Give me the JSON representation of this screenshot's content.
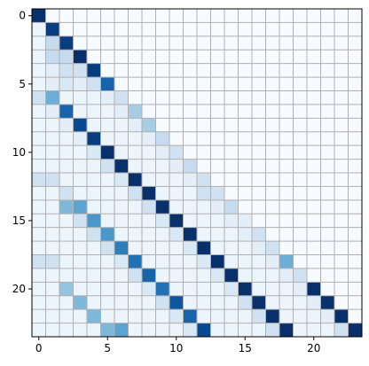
{
  "chart_data": {
    "type": "heatmap",
    "title": "",
    "xlabel": "",
    "ylabel": "",
    "rows": 24,
    "cols": 24,
    "x_ticks": [
      0,
      5,
      10,
      15,
      20
    ],
    "y_ticks": [
      0,
      5,
      10,
      15,
      20
    ],
    "x_tick_labels": [
      "0",
      "5",
      "10",
      "15",
      "20"
    ],
    "y_tick_labels": [
      "0",
      "5",
      "10",
      "15",
      "20"
    ],
    "xlim": [
      -0.5,
      23.5
    ],
    "ylim": [
      23.5,
      -0.5
    ],
    "y_axis": "inverted",
    "grid": true,
    "colormap": "Blues",
    "value_range": [
      0,
      1
    ],
    "values": [
      [
        1.0,
        0,
        0,
        0,
        0,
        0,
        0,
        0,
        0,
        0,
        0,
        0,
        0,
        0,
        0,
        0,
        0,
        0,
        0,
        0,
        0,
        0,
        0,
        0
      ],
      [
        0.05,
        0.95,
        0,
        0,
        0,
        0,
        0,
        0,
        0,
        0,
        0,
        0,
        0,
        0,
        0,
        0,
        0,
        0,
        0,
        0,
        0,
        0,
        0,
        0
      ],
      [
        0.05,
        0.25,
        0.95,
        0,
        0,
        0,
        0,
        0,
        0,
        0,
        0,
        0,
        0,
        0,
        0,
        0,
        0,
        0,
        0,
        0,
        0,
        0,
        0,
        0
      ],
      [
        0.05,
        0.25,
        0.25,
        1.0,
        0,
        0,
        0,
        0,
        0,
        0,
        0,
        0,
        0,
        0,
        0,
        0,
        0,
        0,
        0,
        0,
        0,
        0,
        0,
        0
      ],
      [
        0.05,
        0.1,
        0.2,
        0.2,
        0.95,
        0,
        0,
        0,
        0,
        0,
        0,
        0,
        0,
        0,
        0,
        0,
        0,
        0,
        0,
        0,
        0,
        0,
        0,
        0
      ],
      [
        0.05,
        0.1,
        0.15,
        0.1,
        0.2,
        0.8,
        0,
        0,
        0,
        0,
        0,
        0,
        0,
        0,
        0,
        0,
        0,
        0,
        0,
        0,
        0,
        0,
        0,
        0
      ],
      [
        0.2,
        0.5,
        0.05,
        0.05,
        0.05,
        0.1,
        0.2,
        0,
        0,
        0,
        0,
        0,
        0,
        0,
        0,
        0,
        0,
        0,
        0,
        0,
        0,
        0,
        0,
        0
      ],
      [
        0.05,
        0.1,
        0.8,
        0.05,
        0.05,
        0.05,
        0.1,
        0.35,
        0,
        0,
        0,
        0,
        0,
        0,
        0,
        0,
        0,
        0,
        0,
        0,
        0,
        0,
        0,
        0
      ],
      [
        0.05,
        0.05,
        0.1,
        0.9,
        0.05,
        0.05,
        0.05,
        0.1,
        0.35,
        0,
        0,
        0,
        0,
        0,
        0,
        0,
        0,
        0,
        0,
        0,
        0,
        0,
        0,
        0
      ],
      [
        0.05,
        0.05,
        0.05,
        0.1,
        0.95,
        0.05,
        0.05,
        0.05,
        0.1,
        0.25,
        0,
        0,
        0,
        0,
        0,
        0,
        0,
        0,
        0,
        0,
        0,
        0,
        0,
        0
      ],
      [
        0.05,
        0.05,
        0.05,
        0.05,
        0.15,
        1.0,
        0.05,
        0.05,
        0.05,
        0.1,
        0.2,
        0,
        0,
        0,
        0,
        0,
        0,
        0,
        0,
        0,
        0,
        0,
        0,
        0
      ],
      [
        0.05,
        0.05,
        0.05,
        0.05,
        0.05,
        0.2,
        1.0,
        0.05,
        0.05,
        0.05,
        0.1,
        0.25,
        0,
        0,
        0,
        0,
        0,
        0,
        0,
        0,
        0,
        0,
        0,
        0
      ],
      [
        0.2,
        0.2,
        0.05,
        0.05,
        0.05,
        0.05,
        0.15,
        1.0,
        0.05,
        0.05,
        0.05,
        0.1,
        0.2,
        0,
        0,
        0,
        0,
        0,
        0,
        0,
        0,
        0,
        0,
        0
      ],
      [
        0.05,
        0.05,
        0.2,
        0.05,
        0.05,
        0.05,
        0.05,
        0.2,
        1.0,
        0.05,
        0.05,
        0.05,
        0.2,
        0.2,
        0,
        0,
        0,
        0,
        0,
        0,
        0,
        0,
        0,
        0
      ],
      [
        0.05,
        0.05,
        0.45,
        0.55,
        0.05,
        0.05,
        0.05,
        0.05,
        0.2,
        1.0,
        0.05,
        0.05,
        0.05,
        0.1,
        0.25,
        0,
        0,
        0,
        0,
        0,
        0,
        0,
        0,
        0
      ],
      [
        0.05,
        0.05,
        0.05,
        0.2,
        0.6,
        0.05,
        0.05,
        0.05,
        0.05,
        0.15,
        1.0,
        0.05,
        0.05,
        0.05,
        0.1,
        0.1,
        0,
        0,
        0,
        0,
        0,
        0,
        0,
        0
      ],
      [
        0.05,
        0.05,
        0.05,
        0.05,
        0.2,
        0.6,
        0.05,
        0.05,
        0.05,
        0.05,
        0.15,
        1.0,
        0.05,
        0.05,
        0.05,
        0.1,
        0.2,
        0,
        0,
        0,
        0,
        0,
        0,
        0
      ],
      [
        0.05,
        0.05,
        0.05,
        0.05,
        0.05,
        0.2,
        0.7,
        0.05,
        0.05,
        0.05,
        0.05,
        0.15,
        1.0,
        0.05,
        0.05,
        0.05,
        0.1,
        0.2,
        0,
        0,
        0,
        0,
        0,
        0
      ],
      [
        0.2,
        0.2,
        0.05,
        0.05,
        0.05,
        0.05,
        0.15,
        0.75,
        0.05,
        0.05,
        0.05,
        0.05,
        0.15,
        1.0,
        0.05,
        0.05,
        0.05,
        0.1,
        0.5,
        0,
        0,
        0,
        0,
        0
      ],
      [
        0.05,
        0.05,
        0.05,
        0.05,
        0.05,
        0.05,
        0.05,
        0.2,
        0.8,
        0.05,
        0.05,
        0.05,
        0.05,
        0.15,
        1.0,
        0.05,
        0.05,
        0.05,
        0.1,
        0.2,
        0,
        0,
        0,
        0
      ],
      [
        0.05,
        0.05,
        0.4,
        0.05,
        0.05,
        0.05,
        0.05,
        0.05,
        0.15,
        0.75,
        0.05,
        0.05,
        0.05,
        0.05,
        0.15,
        1.0,
        0.05,
        0.05,
        0.05,
        0.1,
        1.0,
        0,
        0,
        0
      ],
      [
        0.05,
        0.05,
        0.05,
        0.45,
        0.05,
        0.05,
        0.05,
        0.05,
        0.05,
        0.2,
        0.85,
        0.05,
        0.05,
        0.05,
        0.05,
        0.2,
        1.0,
        0.05,
        0.05,
        0.05,
        0.1,
        1.0,
        0,
        0
      ],
      [
        0.05,
        0.05,
        0.05,
        0.05,
        0.45,
        0.05,
        0.05,
        0.05,
        0.05,
        0.05,
        0.15,
        0.8,
        0.05,
        0.05,
        0.05,
        0.05,
        0.2,
        1.0,
        0.05,
        0.05,
        0.05,
        0.1,
        1.0,
        0
      ],
      [
        0.05,
        0.05,
        0.05,
        0.05,
        0.05,
        0.45,
        0.55,
        0.05,
        0.05,
        0.05,
        0.05,
        0.15,
        0.9,
        0.05,
        0.05,
        0.05,
        0.05,
        0.2,
        1.0,
        0.05,
        0.05,
        0.05,
        0.2,
        1.0
      ]
    ]
  }
}
